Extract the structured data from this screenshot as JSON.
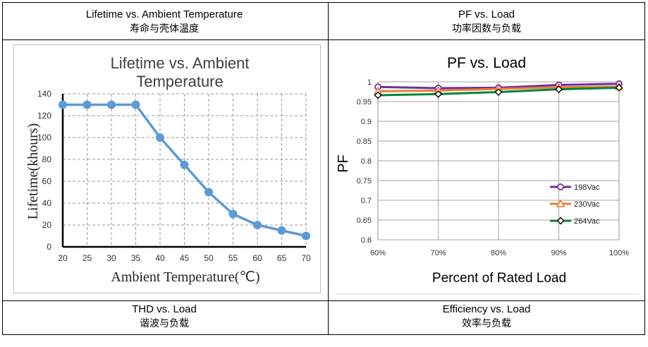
{
  "headers": {
    "top_left": {
      "en": "Lifetime vs. Ambient Temperature",
      "cn": "寿命与壳体温度"
    },
    "top_right": {
      "en": "PF vs. Load",
      "cn": "功率因数与负载"
    },
    "bottom_left": {
      "en": "THD vs. Load",
      "cn": "谐波与负载"
    },
    "bottom_right": {
      "en": "Efficiency vs. Load",
      "cn": "效率与负载"
    }
  },
  "colors": {
    "lifetime_line": "#5B9BD5",
    "s198": "#7030A0",
    "s230": "#ED7D31",
    "s264": "#00843D"
  },
  "chart_data": [
    {
      "type": "line",
      "title_line1": "Lifetime vs. Ambient",
      "title_line2": "Temperature",
      "xlabel": "Ambient Temperature(℃)",
      "ylabel": "Lifetime(khours)",
      "x": [
        20,
        25,
        30,
        35,
        40,
        45,
        50,
        55,
        60,
        65,
        70
      ],
      "y": [
        130,
        130,
        130,
        130,
        100,
        75,
        50,
        30,
        20,
        15,
        10
      ],
      "xticks": [
        "20",
        "25",
        "30",
        "35",
        "40",
        "45",
        "50",
        "55",
        "60",
        "65",
        "70"
      ],
      "yticks": [
        "0",
        "20",
        "40",
        "60",
        "80",
        "100",
        "120",
        "140"
      ],
      "ylim": [
        0,
        140
      ],
      "grid": true
    },
    {
      "type": "line",
      "title": "PF vs. Load",
      "xlabel": "Percent of Rated Load",
      "ylabel": "PF",
      "categories": [
        "60%",
        "70%",
        "80%",
        "90%",
        "100%"
      ],
      "yticks": [
        "0.6",
        "0.65",
        "0.7",
        "0.75",
        "0.8",
        "0.85",
        "0.9",
        "0.95",
        "1"
      ],
      "ylim": [
        0.6,
        1.0
      ],
      "legend_position": "right",
      "series": [
        {
          "name": "198Vac",
          "values": [
            0.987,
            0.984,
            0.985,
            0.992,
            0.995
          ]
        },
        {
          "name": "230Vac",
          "values": [
            0.976,
            0.978,
            0.982,
            0.986,
            0.988
          ]
        },
        {
          "name": "264Vac",
          "values": [
            0.966,
            0.969,
            0.974,
            0.981,
            0.985
          ]
        }
      ],
      "grid": true
    }
  ]
}
